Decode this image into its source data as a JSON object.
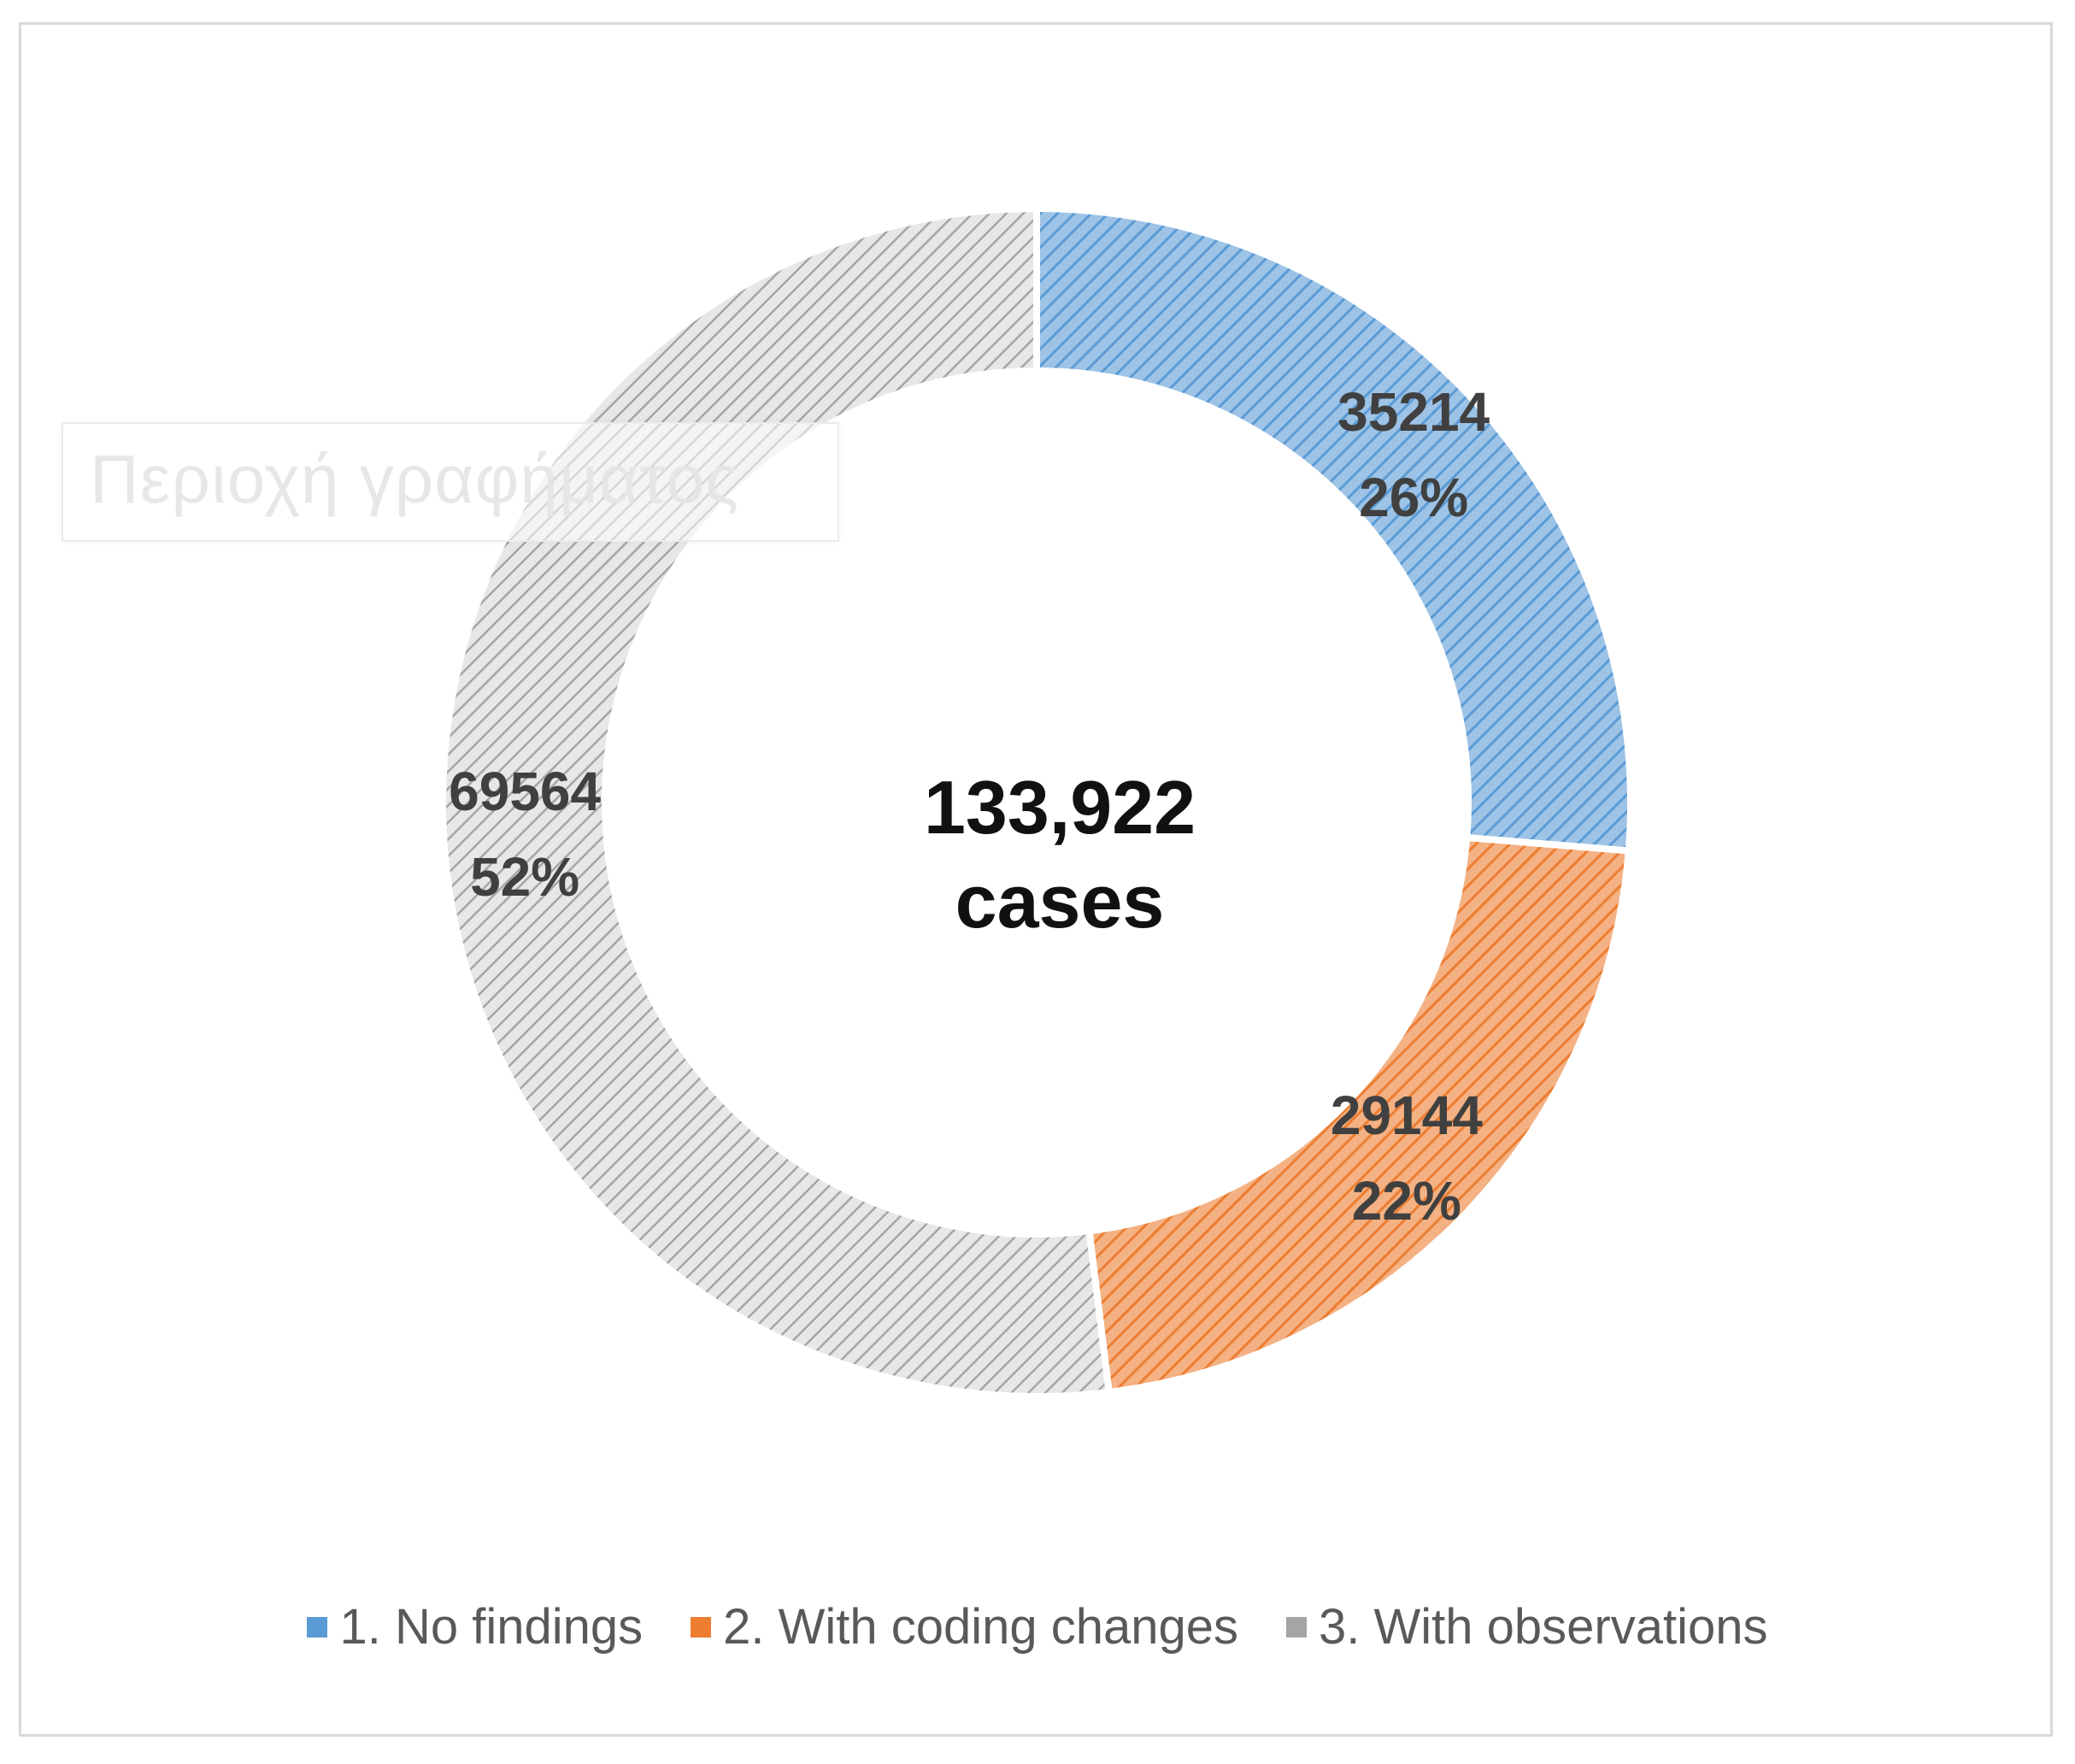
{
  "chart_data": {
    "type": "pie",
    "variant": "doughnut",
    "center_label": [
      "133,922",
      "cases"
    ],
    "series": [
      {
        "name": "1. No findings",
        "value": 35214,
        "percent_label": "26%",
        "color": "#5b9bd5"
      },
      {
        "name": "2. With coding changes",
        "value": 29144,
        "percent_label": "22%",
        "color": "#ed7d31"
      },
      {
        "name": "3. With observations",
        "value": 69564,
        "percent_label": "52%",
        "color": "#a5a5a5"
      }
    ],
    "legend_placement": "bottom",
    "fill_pattern": "diagonal-hatch"
  },
  "ghost_text": "Περιοχή γραφήματος"
}
